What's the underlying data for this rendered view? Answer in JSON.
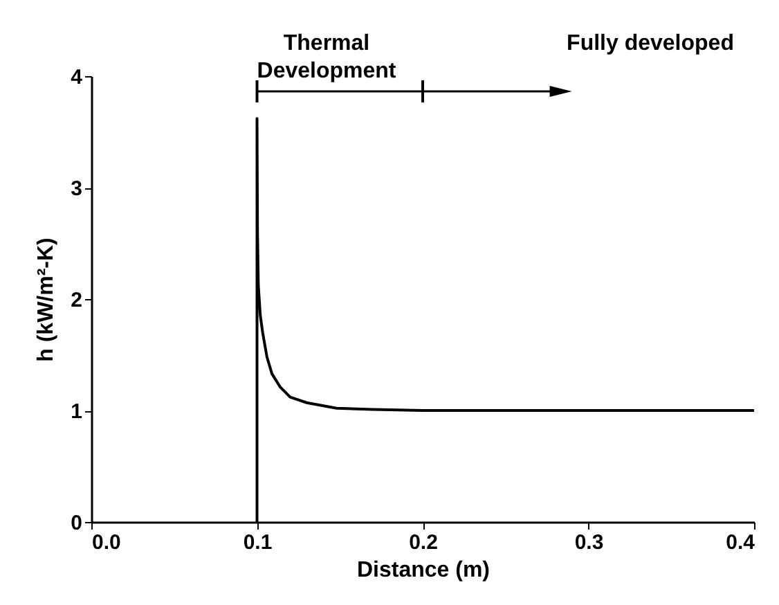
{
  "chart_data": {
    "type": "line",
    "xlabel": "Distance (m)",
    "ylabel": "h (kW/m²-K)",
    "x": [
      0.1,
      0.1,
      0.1003,
      0.1008,
      0.102,
      0.1034,
      0.106,
      0.109,
      0.114,
      0.12,
      0.13,
      0.148,
      0.17,
      0.2,
      0.3,
      0.4
    ],
    "series": [
      {
        "color": "#000000",
        "values": [
          0,
          3.62,
          2.6,
          2.12,
          1.85,
          1.7,
          1.48,
          1.33,
          1.21,
          1.12,
          1.07,
          1.02,
          1.01,
          1.0,
          1.0,
          1.0
        ]
      }
    ],
    "xlim": [
      0,
      0.4
    ],
    "ylim": [
      0,
      4
    ],
    "xticks": [
      {
        "value": 0,
        "label": "0.0"
      },
      0.1,
      0.2,
      0.3,
      0.4
    ],
    "yticks": [
      0,
      1,
      2,
      3,
      4
    ],
    "annotations": [
      "Thermal Development",
      "Fully developed"
    ],
    "grid": false,
    "legend": false,
    "marker": "none",
    "line_style": "solid"
  }
}
